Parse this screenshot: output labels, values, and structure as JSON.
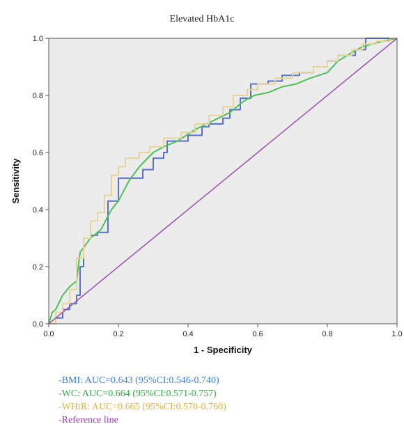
{
  "chart_data": {
    "type": "line",
    "title": "Elevated HbA1c",
    "xlabel": "1 - Specificity",
    "ylabel": "Sensitivity",
    "xlim": [
      0,
      1
    ],
    "ylim": [
      0,
      1
    ],
    "x_ticks": [
      "0.0",
      "0.2",
      "0.4",
      "0.6",
      "0.8",
      "1.0"
    ],
    "y_ticks": [
      "0.0",
      "0.2",
      "0.4",
      "0.6",
      "0.8",
      "1.0"
    ],
    "grid": false,
    "legend_position": "below",
    "plot_background": "#ececec",
    "series": [
      {
        "name": "-BMI: AUC=0.643 (95%CI:0.546-0.740)",
        "color": "#5a72c4",
        "step": true,
        "x": [
          0,
          0.02,
          0.04,
          0.06,
          0.08,
          0.09,
          0.1,
          0.12,
          0.14,
          0.17,
          0.2,
          0.24,
          0.27,
          0.3,
          0.33,
          0.34,
          0.36,
          0.4,
          0.44,
          0.46,
          0.5,
          0.52,
          0.55,
          0.58,
          0.63,
          0.67,
          0.72,
          0.76,
          0.8,
          0.83,
          0.88,
          0.91,
          0.94,
          1.0
        ],
        "y": [
          0,
          0.02,
          0.05,
          0.07,
          0.1,
          0.2,
          0.3,
          0.31,
          0.32,
          0.43,
          0.51,
          0.51,
          0.54,
          0.58,
          0.6,
          0.64,
          0.64,
          0.66,
          0.69,
          0.7,
          0.72,
          0.75,
          0.79,
          0.84,
          0.85,
          0.87,
          0.88,
          0.9,
          0.92,
          0.94,
          0.96,
          1.0,
          1.0,
          1.0
        ]
      },
      {
        "name": "-WC: AUC=0.664 (95%CI:0.571-0.757)",
        "color": "#4fbf5a",
        "step": false,
        "x": [
          0,
          0.01,
          0.02,
          0.04,
          0.06,
          0.08,
          0.09,
          0.12,
          0.15,
          0.18,
          0.2,
          0.23,
          0.26,
          0.3,
          0.33,
          0.37,
          0.42,
          0.47,
          0.52,
          0.56,
          0.59,
          0.63,
          0.67,
          0.71,
          0.75,
          0.8,
          0.83,
          0.87,
          0.9,
          0.93,
          0.96,
          1.0
        ],
        "y": [
          0,
          0.04,
          0.05,
          0.1,
          0.13,
          0.15,
          0.25,
          0.3,
          0.33,
          0.4,
          0.43,
          0.5,
          0.55,
          0.6,
          0.62,
          0.64,
          0.68,
          0.71,
          0.74,
          0.78,
          0.8,
          0.81,
          0.83,
          0.84,
          0.86,
          0.88,
          0.92,
          0.95,
          0.97,
          0.98,
          0.99,
          1.0
        ]
      },
      {
        "name": "-WHtR: AUC=0.665 (95%CI:0.570-0.760)",
        "color": "#e6d49a",
        "step": true,
        "x": [
          0,
          0.02,
          0.04,
          0.06,
          0.08,
          0.1,
          0.12,
          0.14,
          0.16,
          0.18,
          0.2,
          0.22,
          0.26,
          0.29,
          0.33,
          0.35,
          0.38,
          0.42,
          0.46,
          0.5,
          0.53,
          0.57,
          0.6,
          0.65,
          0.7,
          0.76,
          0.8,
          0.83,
          0.87,
          0.9,
          0.94,
          0.98,
          1.0
        ],
        "y": [
          0,
          0.04,
          0.07,
          0.12,
          0.23,
          0.3,
          0.36,
          0.39,
          0.45,
          0.52,
          0.55,
          0.58,
          0.6,
          0.62,
          0.65,
          0.65,
          0.67,
          0.7,
          0.73,
          0.76,
          0.8,
          0.82,
          0.84,
          0.86,
          0.88,
          0.9,
          0.92,
          0.94,
          0.96,
          0.98,
          0.99,
          1.0,
          1.0
        ]
      },
      {
        "name": "-Reference line",
        "color": "#9b59b6",
        "step": false,
        "x": [
          0,
          1
        ],
        "y": [
          0,
          1
        ]
      }
    ]
  }
}
